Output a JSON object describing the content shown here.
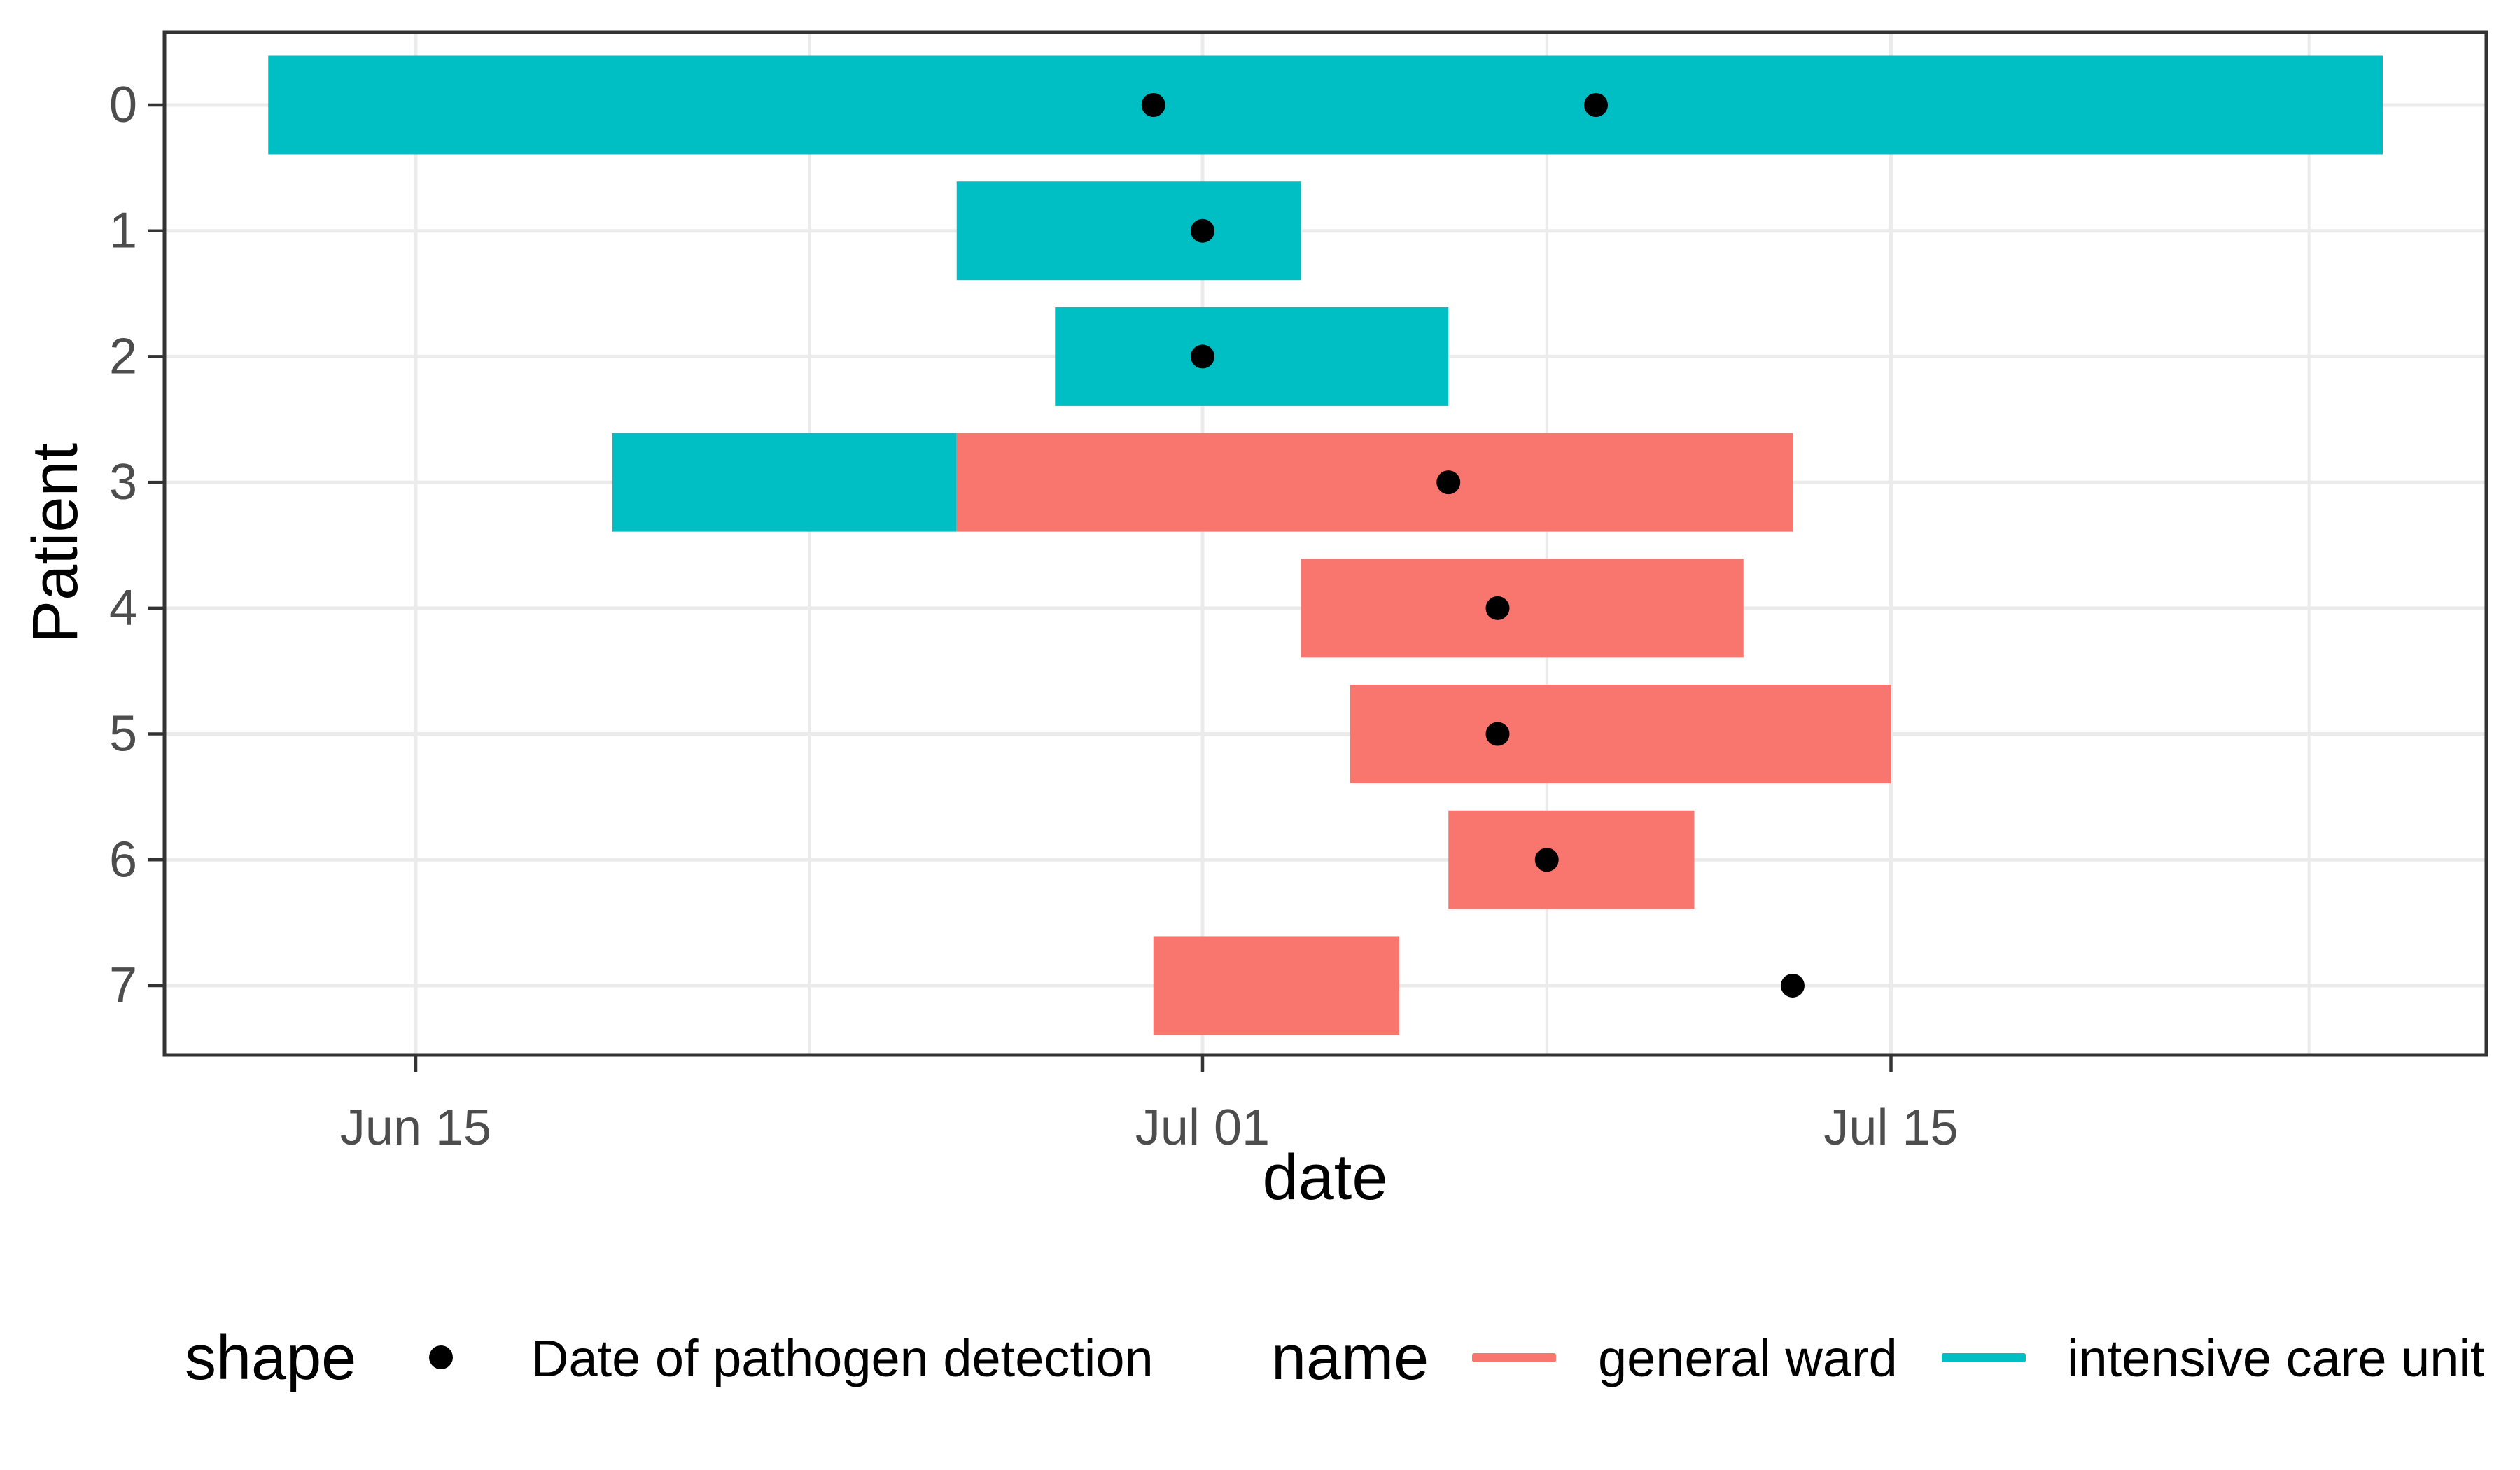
{
  "chart_data": {
    "type": "bar",
    "subtype": "gantt-timeline-of-hospital-stays",
    "title": "",
    "xlabel": "date",
    "ylabel": "Patient",
    "x_axis": {
      "tick_labels": [
        "Jun 15",
        "Jul 01",
        "Jul 15"
      ],
      "tick_days_from_jun15": [
        0,
        16,
        30
      ],
      "minor_gridline_days_from_jun15": [
        8,
        23,
        38.5
      ]
    },
    "y_axis": {
      "tick_labels": [
        "0",
        "1",
        "2",
        "3",
        "4",
        "5",
        "6",
        "7"
      ]
    },
    "series_colors": {
      "general ward": "#F8766D",
      "intensive care unit": "#00BFC4"
    },
    "detection_color": "#000000",
    "patients": [
      {
        "id": "0",
        "stays": [
          {
            "ward": "intensive care unit",
            "start": "Jun 12",
            "end": "Jul 25"
          }
        ],
        "detections": [
          "Jun 30",
          "Jul 09"
        ]
      },
      {
        "id": "1",
        "stays": [
          {
            "ward": "intensive care unit",
            "start": "Jun 26",
            "end": "Jul 03"
          }
        ],
        "detections": [
          "Jul 01"
        ]
      },
      {
        "id": "2",
        "stays": [
          {
            "ward": "intensive care unit",
            "start": "Jun 28",
            "end": "Jul 06"
          }
        ],
        "detections": [
          "Jul 01"
        ]
      },
      {
        "id": "3",
        "stays": [
          {
            "ward": "intensive care unit",
            "start": "Jun 19",
            "end": "Jun 26"
          },
          {
            "ward": "general ward",
            "start": "Jun 26",
            "end": "Jul 13"
          }
        ],
        "detections": [
          "Jul 06"
        ]
      },
      {
        "id": "4",
        "stays": [
          {
            "ward": "general ward",
            "start": "Jul 03",
            "end": "Jul 12"
          }
        ],
        "detections": [
          "Jul 07"
        ]
      },
      {
        "id": "5",
        "stays": [
          {
            "ward": "general ward",
            "start": "Jul 04",
            "end": "Jul 15"
          }
        ],
        "detections": [
          "Jul 07"
        ]
      },
      {
        "id": "6",
        "stays": [
          {
            "ward": "general ward",
            "start": "Jul 06",
            "end": "Jul 11"
          }
        ],
        "detections": [
          "Jul 08"
        ]
      },
      {
        "id": "7",
        "stays": [
          {
            "ward": "general ward",
            "start": "Jun 30",
            "end": "Jul 05"
          }
        ],
        "detections": [
          "Jul 13"
        ]
      }
    ],
    "legend": {
      "shape_group_title": "shape",
      "shape_item_label": "Date of pathogen detection",
      "name_group_title": "name",
      "name_items": [
        {
          "label": "general ward",
          "color": "#F8766D"
        },
        {
          "label": "intensive care unit",
          "color": "#00BFC4"
        }
      ]
    },
    "style": {
      "panel_background": "#FFFFFF",
      "grid_color": "#EBEBEB",
      "border_color": "#333333",
      "tick_color": "#333333",
      "tick_label_color": "#4D4D4D",
      "title_color": "#000000"
    }
  }
}
